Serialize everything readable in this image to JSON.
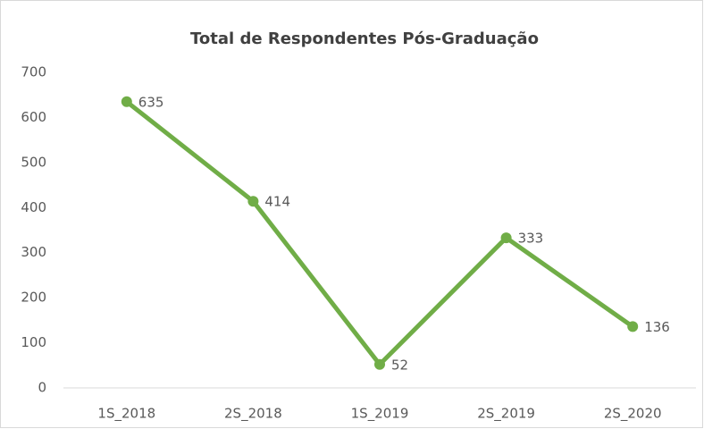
{
  "chart_data": {
    "type": "line",
    "title": "Total de Respondentes Pós-Graduação",
    "categories": [
      "1S_2018",
      "2S_2018",
      "1S_2019",
      "2S_2019",
      "2S_2020"
    ],
    "values": [
      635,
      414,
      52,
      333,
      136
    ],
    "color": "#70ad47",
    "ylim": [
      0,
      700
    ],
    "yticks": [
      0,
      100,
      200,
      300,
      400,
      500,
      600,
      700
    ],
    "grid": false
  }
}
